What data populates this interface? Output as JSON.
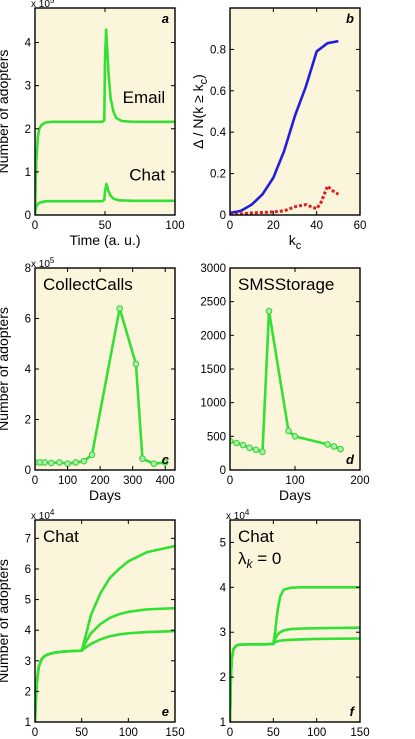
{
  "chart_data": [
    {
      "id": "a",
      "type": "line",
      "panel_label": "a",
      "xlabel": "Time (a. u.)",
      "ylabel": "Number of adopters",
      "xlim": [
        0,
        100
      ],
      "ylim": [
        0,
        4.8
      ],
      "xticks": [
        0,
        50,
        100
      ],
      "xtick_labels": [
        "0",
        "50",
        "100"
      ],
      "yticks": [
        0,
        1,
        2,
        3,
        4
      ],
      "ytick_labels": [
        "0",
        "1",
        "2",
        "3",
        "4"
      ],
      "y_multiplier": "x 10",
      "y_multiplier_exp": "5",
      "annotations": [
        {
          "text": "Email",
          "x": 93,
          "y": 2.6
        },
        {
          "text": "Chat",
          "x": 93,
          "y": 0.8
        }
      ],
      "series": [
        {
          "color": "#33e033",
          "style": "solid",
          "x": [
            0,
            0.5,
            1,
            2,
            3,
            5,
            8,
            12,
            20,
            30,
            40,
            48,
            49.5,
            50,
            50.8,
            51.5,
            52.5,
            54,
            56,
            58,
            62,
            70,
            80,
            100
          ],
          "y": [
            0,
            0.8,
            1.3,
            1.8,
            2.0,
            2.1,
            2.15,
            2.16,
            2.16,
            2.16,
            2.16,
            2.16,
            2.2,
            3.6,
            4.3,
            3.9,
            3.3,
            2.7,
            2.4,
            2.25,
            2.18,
            2.16,
            2.16,
            2.16
          ]
        },
        {
          "color": "#33e033",
          "style": "solid",
          "x": [
            0,
            0.5,
            1,
            2,
            3,
            5,
            8,
            12,
            20,
            30,
            40,
            48,
            49.5,
            50,
            51,
            52.5,
            54,
            56,
            60,
            70,
            100
          ],
          "y": [
            0,
            0.15,
            0.2,
            0.25,
            0.28,
            0.3,
            0.32,
            0.32,
            0.32,
            0.32,
            0.32,
            0.32,
            0.35,
            0.55,
            0.72,
            0.55,
            0.45,
            0.38,
            0.34,
            0.33,
            0.33
          ]
        }
      ]
    },
    {
      "id": "b",
      "type": "line",
      "panel_label": "b",
      "xlabel": "k",
      "xlabel_sub": "c",
      "ylabel": "Δ / N(k ≥ k",
      "ylabel_sub": "c",
      "ylabel_end": ")",
      "xlim": [
        0,
        60
      ],
      "ylim": [
        0,
        1.0
      ],
      "xticks": [
        0,
        20,
        40,
        60
      ],
      "xtick_labels": [
        "0",
        "20",
        "40",
        "60"
      ],
      "yticks": [
        0,
        0.2,
        0.4,
        0.6,
        0.8
      ],
      "ytick_labels": [
        "0",
        "0.2",
        "0.4",
        "0.6",
        "0.8"
      ],
      "series": [
        {
          "color": "#1f1fdd",
          "style": "solid",
          "x": [
            0,
            5,
            10,
            15,
            20,
            25,
            30,
            35,
            40,
            45,
            50
          ],
          "y": [
            0.01,
            0.02,
            0.05,
            0.1,
            0.18,
            0.31,
            0.48,
            0.62,
            0.79,
            0.83,
            0.84
          ]
        },
        {
          "color": "#dd1f1f",
          "style": "dotted",
          "x": [
            0,
            5,
            10,
            15,
            20,
            25,
            30,
            35,
            40,
            42,
            45,
            47,
            50
          ],
          "y": [
            0.0,
            0.005,
            0.01,
            0.012,
            0.015,
            0.02,
            0.04,
            0.05,
            0.03,
            0.06,
            0.14,
            0.12,
            0.1
          ]
        }
      ]
    },
    {
      "id": "c",
      "type": "line",
      "panel_label": "c",
      "xlabel": "Days",
      "ylabel": "Number of adopters",
      "xlim": [
        0,
        430
      ],
      "ylim": [
        0,
        8
      ],
      "xticks": [
        0,
        100,
        200,
        300,
        400
      ],
      "xtick_labels": [
        "0",
        "100",
        "200",
        "300",
        "400"
      ],
      "yticks": [
        0,
        2,
        4,
        6,
        8
      ],
      "ytick_labels": [
        "0",
        "2",
        "4",
        "6",
        "8"
      ],
      "y_multiplier": "x 10",
      "y_multiplier_exp": "5",
      "title": "CollectCalls",
      "series": [
        {
          "color": "#33e033",
          "style": "solid-markers",
          "x": [
            0,
            15,
            30,
            50,
            75,
            100,
            125,
            150,
            175,
            260,
            310,
            330,
            365,
            400
          ],
          "y": [
            0.3,
            0.3,
            0.3,
            0.28,
            0.3,
            0.25,
            0.3,
            0.35,
            0.6,
            6.4,
            4.2,
            0.45,
            0.25,
            0.3
          ]
        }
      ]
    },
    {
      "id": "d",
      "type": "line",
      "panel_label": "d",
      "xlabel": "Days",
      "ylabel": "",
      "xlim": [
        0,
        200
      ],
      "ylim": [
        0,
        3000
      ],
      "xticks": [
        0,
        100,
        200
      ],
      "xtick_labels": [
        "0",
        "100",
        "200"
      ],
      "yticks": [
        0,
        500,
        1000,
        1500,
        2000,
        2500,
        3000
      ],
      "ytick_labels": [
        "0",
        "500",
        "1000",
        "1500",
        "2000",
        "2500",
        "3000"
      ],
      "title": "SMSStorage",
      "series": [
        {
          "color": "#33e033",
          "style": "solid-markers",
          "x": [
            0,
            10,
            20,
            30,
            40,
            50,
            60,
            90,
            100,
            150,
            160,
            170
          ],
          "y": [
            430,
            400,
            370,
            330,
            300,
            270,
            2360,
            580,
            500,
            380,
            350,
            310
          ]
        }
      ]
    },
    {
      "id": "e",
      "type": "line",
      "panel_label": "e",
      "xlabel": "Time (a. u.)",
      "ylabel": "Number of adopters",
      "xlim": [
        0,
        150
      ],
      "ylim": [
        1,
        7.6
      ],
      "xticks": [
        0,
        50,
        100,
        150
      ],
      "xtick_labels": [
        "0",
        "50",
        "100",
        "150"
      ],
      "yticks": [
        1,
        2,
        3,
        4,
        5,
        6,
        7
      ],
      "ytick_labels": [
        "1",
        "2",
        "3",
        "4",
        "5",
        "6",
        "7"
      ],
      "y_multiplier": "x 10",
      "y_multiplier_exp": "4",
      "title": "Chat",
      "series": [
        {
          "color": "#33e033",
          "style": "solid",
          "x": [
            0,
            1,
            2,
            4,
            7,
            10,
            15,
            20,
            30,
            40,
            50,
            55,
            60,
            70,
            80,
            90,
            100,
            120,
            150
          ],
          "y": [
            1.0,
            1.8,
            2.3,
            2.8,
            3.05,
            3.15,
            3.22,
            3.26,
            3.3,
            3.32,
            3.33,
            3.9,
            4.5,
            5.2,
            5.7,
            6.0,
            6.25,
            6.55,
            6.75
          ]
        },
        {
          "color": "#33e033",
          "style": "solid",
          "x": [
            0,
            1,
            2,
            4,
            7,
            10,
            15,
            20,
            30,
            40,
            50,
            55,
            60,
            70,
            80,
            90,
            100,
            120,
            150
          ],
          "y": [
            1.0,
            1.8,
            2.3,
            2.8,
            3.05,
            3.15,
            3.22,
            3.26,
            3.3,
            3.32,
            3.33,
            3.65,
            3.9,
            4.2,
            4.4,
            4.52,
            4.6,
            4.68,
            4.72
          ]
        },
        {
          "color": "#33e033",
          "style": "solid",
          "x": [
            0,
            1,
            2,
            4,
            7,
            10,
            15,
            20,
            30,
            40,
            50,
            55,
            60,
            70,
            80,
            90,
            100,
            120,
            150
          ],
          "y": [
            1.0,
            1.8,
            2.3,
            2.8,
            3.05,
            3.15,
            3.22,
            3.26,
            3.3,
            3.32,
            3.33,
            3.45,
            3.55,
            3.7,
            3.8,
            3.86,
            3.9,
            3.94,
            3.97
          ]
        }
      ]
    },
    {
      "id": "f",
      "type": "line",
      "panel_label": "f",
      "xlabel": "Time (a. u.)",
      "ylabel": "",
      "xlim": [
        0,
        150
      ],
      "ylim": [
        1,
        5.5
      ],
      "xticks": [
        0,
        50,
        100,
        150
      ],
      "xtick_labels": [
        "0",
        "50",
        "100",
        "150"
      ],
      "yticks": [
        1,
        2,
        3,
        4,
        5
      ],
      "ytick_labels": [
        "1",
        "2",
        "3",
        "4",
        "5"
      ],
      "y_multiplier": "x 10",
      "y_multiplier_exp": "4",
      "title": "Chat",
      "annotation_lambda": "λ",
      "annotation_lambda_sub": "k",
      "annotation_lambda_tail": " = 0",
      "series": [
        {
          "color": "#33e033",
          "style": "solid",
          "x": [
            0,
            1,
            2,
            4,
            7,
            10,
            20,
            30,
            40,
            50,
            52,
            55,
            58,
            62,
            70,
            80,
            100,
            150
          ],
          "y": [
            1.0,
            2.0,
            2.4,
            2.62,
            2.7,
            2.72,
            2.73,
            2.73,
            2.73,
            2.74,
            3.0,
            3.5,
            3.8,
            3.95,
            3.99,
            4.0,
            4.0,
            4.0
          ]
        },
        {
          "color": "#33e033",
          "style": "solid",
          "x": [
            0,
            1,
            2,
            4,
            7,
            10,
            20,
            30,
            40,
            50,
            52,
            55,
            58,
            62,
            70,
            80,
            100,
            150
          ],
          "y": [
            1.0,
            2.0,
            2.4,
            2.62,
            2.7,
            2.72,
            2.73,
            2.73,
            2.73,
            2.74,
            2.85,
            2.95,
            3.0,
            3.04,
            3.07,
            3.08,
            3.09,
            3.1
          ]
        },
        {
          "color": "#33e033",
          "style": "solid",
          "x": [
            0,
            1,
            2,
            4,
            7,
            10,
            20,
            30,
            40,
            50,
            52,
            55,
            58,
            62,
            70,
            80,
            100,
            150
          ],
          "y": [
            1.0,
            2.0,
            2.4,
            2.62,
            2.7,
            2.72,
            2.73,
            2.73,
            2.73,
            2.74,
            2.78,
            2.8,
            2.81,
            2.82,
            2.83,
            2.84,
            2.85,
            2.86
          ]
        }
      ]
    }
  ]
}
